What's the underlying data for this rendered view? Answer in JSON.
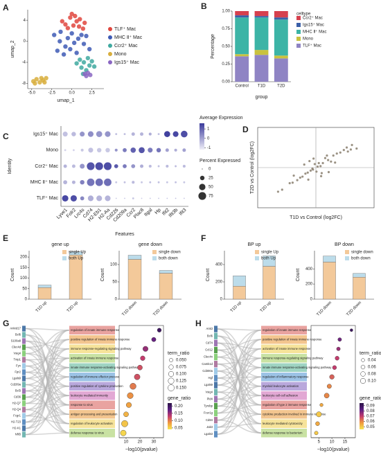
{
  "chart_data": [
    {
      "type": "scatter",
      "panel": "A",
      "xlabel": "umap_1",
      "ylabel": "umap_2",
      "xlim": [
        -5.5,
        4
      ],
      "xticks": [
        {
          "value": -5,
          "label": "-5.0"
        },
        {
          "value": -2.5,
          "label": "-2.5"
        },
        {
          "value": 0,
          "label": "0.0"
        },
        {
          "value": 2.5,
          "label": "2.5"
        }
      ],
      "ylim": [
        -9,
        6
      ],
      "yticks": [
        -8,
        -4,
        0,
        4
      ],
      "legend": "right",
      "series": [
        {
          "name": "TLF⁺ Mac",
          "color": "#e0463e",
          "x": [
            -0.8,
            -0.2,
            0.4,
            1.0,
            1.6,
            -0.5,
            0.2,
            0.9,
            1.4,
            0.0,
            -1.2,
            0.6
          ],
          "y": [
            3.2,
            4.5,
            4.8,
            4.2,
            3.5,
            2.5,
            3.0,
            2.8,
            2.4,
            5.2,
            3.8,
            3.8
          ]
        },
        {
          "name": "MHC Ⅱ⁺ Mac",
          "color": "#3e5bb5",
          "x": [
            -2.2,
            -1.5,
            -0.8,
            0.0,
            0.8,
            1.5,
            -1.8,
            -1.0,
            -0.2,
            0.6,
            1.2,
            -0.5,
            0.3,
            -1.4,
            1.8,
            2.2
          ],
          "y": [
            1.2,
            0.0,
            -1.0,
            1.5,
            0.5,
            -0.5,
            -1.8,
            -2.5,
            -1.5,
            -2.2,
            1.2,
            0.6,
            -0.3,
            1.8,
            1.0,
            -1.5
          ]
        },
        {
          "name": "Ccr2⁺ Mac",
          "color": "#3fa9a0",
          "x": [
            1.0,
            1.5,
            2.0,
            2.5,
            1.2,
            1.8,
            2.2,
            0.6,
            1.4,
            2.8
          ],
          "y": [
            -3.5,
            -4.0,
            -3.2,
            -3.8,
            -5.0,
            -5.5,
            -4.6,
            -4.2,
            -6.2,
            -4.8
          ]
        },
        {
          "name": "Mono",
          "color": "#d8ae3c",
          "x": [
            -4.8,
            -4.4,
            -4.0,
            -3.6,
            -3.2,
            -4.6,
            -3.8,
            -3.4
          ],
          "y": [
            -7.6,
            -7.2,
            -7.8,
            -7.4,
            -7.0,
            -8.0,
            -7.0,
            -7.8
          ]
        },
        {
          "name": "Igs15⁺ Mac",
          "color": "#8a66c2",
          "x": [
            1.6,
            2.0,
            1.8,
            2.3
          ],
          "y": [
            -6.2,
            -6.0,
            -6.6,
            -6.4
          ]
        }
      ]
    },
    {
      "type": "stacked_bar",
      "panel": "B",
      "xlabel": "group",
      "ylabel": "Percentage",
      "legend_title": "celltype",
      "categories": [
        "Control",
        "T1D",
        "T2D"
      ],
      "ylim": [
        0,
        1
      ],
      "yticks": [
        {
          "value": 0,
          "label": "0.00"
        },
        {
          "value": 0.25,
          "label": "0.25"
        },
        {
          "value": 0.5,
          "label": "0.50"
        },
        {
          "value": 0.75,
          "label": "0.75"
        },
        {
          "value": 1,
          "label": "1.00"
        }
      ],
      "series": [
        {
          "name": "TLF⁺ Mac",
          "color": "#8f84c4",
          "values": [
            0.36,
            0.38,
            0.33
          ]
        },
        {
          "name": "Mono",
          "color": "#c9c23e",
          "values": [
            0.03,
            0.07,
            0.04
          ]
        },
        {
          "name": "MHC Ⅱ⁺ Mac",
          "color": "#3cb4a6",
          "values": [
            0.52,
            0.46,
            0.51
          ]
        },
        {
          "name": "Igs15⁺ Mac",
          "color": "#3a5fa8",
          "values": [
            0.03,
            0.02,
            0.03
          ]
        },
        {
          "name": "Ccr2⁺ Mac",
          "color": "#d6404e",
          "values": [
            0.06,
            0.07,
            0.09
          ]
        }
      ]
    },
    {
      "type": "dot_matrix",
      "panel": "C",
      "xlabel": "Features",
      "ylabel": "Identity",
      "rows": [
        "Igs15⁺ Mac",
        "Mono",
        "Ccr2⁺ Mac",
        "MHC Ⅱ⁺ Mac",
        "TLF⁺ Mac"
      ],
      "features": [
        "Lyve1",
        "Folr2",
        "Lrc4s",
        "Cd74",
        "H2-Eb1",
        "H2-Aa",
        "Cd226",
        "Cd209a",
        "Ccr2",
        "Plac8",
        "Itgal",
        "Hp",
        "Ifit2",
        "Ifit3b",
        "Ifit3"
      ],
      "values": [
        [
          -0.5,
          -0.4,
          0.2,
          0.3,
          0.2,
          0.2,
          -0.5,
          -0.5,
          -0.3,
          -0.3,
          -0.2,
          -0.5,
          1.5,
          1.4,
          1.3
        ],
        [
          -0.8,
          -0.8,
          -0.6,
          -0.5,
          -0.6,
          -0.6,
          0.2,
          0.6,
          1.0,
          1.2,
          0.6,
          0.7,
          0.0,
          -0.2,
          0
        ],
        [
          -0.3,
          -0.4,
          0.2,
          1.2,
          1.3,
          1.3,
          1.1,
          0.6,
          0.2,
          -0.2,
          -0.4,
          -0.5,
          -0.4,
          -0.4,
          -0.4
        ],
        [
          -0.3,
          -0.3,
          0.5,
          0.7,
          0.8,
          0.8,
          -0.6,
          -0.5,
          -0.4,
          -0.6,
          -0.5,
          -0.5,
          -0.6,
          -0.5,
          -0.6
        ],
        [
          1.4,
          1.3,
          0.4,
          -0.2,
          -0.3,
          -0.3,
          -0.6,
          -0.6,
          -0.6,
          -0.7,
          -0.6,
          -0.6,
          -0.6,
          -0.5,
          -0.6
        ]
      ],
      "sizes": [
        [
          30,
          25,
          30,
          40,
          45,
          40,
          5,
          5,
          15,
          15,
          10,
          5,
          45,
          40,
          55
        ],
        [
          5,
          5,
          10,
          30,
          25,
          25,
          10,
          20,
          35,
          45,
          30,
          25,
          15,
          10,
          15
        ],
        [
          15,
          15,
          30,
          75,
          75,
          75,
          20,
          20,
          20,
          15,
          10,
          5,
          10,
          5,
          10
        ],
        [
          20,
          15,
          25,
          70,
          70,
          70,
          5,
          5,
          10,
          5,
          5,
          5,
          5,
          5,
          5
        ],
        [
          50,
          50,
          20,
          40,
          40,
          40,
          2,
          2,
          5,
          2,
          2,
          2,
          2,
          2,
          2
        ]
      ],
      "color_title": "Average Expression",
      "clim": [
        -1.2,
        1.6
      ],
      "cticks": [
        1,
        0,
        -1
      ],
      "colors": [
        "#efeef8",
        "#3b3b9c"
      ],
      "size_title": "Percent Expressed",
      "size_ticks": [
        0,
        25,
        50,
        75
      ]
    },
    {
      "type": "scatter",
      "panel": "D",
      "xlabel": "T1D vs Control (log2FC)",
      "ylabel": "T2D vs Control (log2FC)",
      "xlim": [
        -10,
        10
      ],
      "ylim": [
        -8,
        8
      ],
      "series": [
        {
          "color": "#8a7f6e",
          "x": [
            0.3,
            -0.5,
            1.2,
            -1.4,
            2.1,
            -2.3,
            0.8,
            -0.9,
            3.0,
            -3.2,
            1.6,
            -1.8,
            4.2,
            -4.5,
            0.1,
            -0.2,
            2.6,
            -2.7,
            5.3,
            -5.8,
            1.0,
            -1.1,
            3.6,
            -0.6,
            0.5,
            6.2,
            -6.5,
            2.2,
            -2.0,
            7.0,
            4.8,
            5.5,
            6.0,
            -3.8,
            1.9,
            -1.3,
            3.3,
            -4.0,
            0.9,
            -0.4
          ],
          "y": [
            0.2,
            -0.4,
            0.9,
            -1.0,
            1.5,
            -1.8,
            0.3,
            -0.6,
            2.4,
            -2.5,
            1.9,
            -1.2,
            3.0,
            -3.1,
            -0.8,
            0.7,
            1.2,
            -2.0,
            4.0,
            -4.4,
            -1.1,
            1.3,
            2.8,
            -0.2,
            0.9,
            4.5,
            -4.8,
            -0.9,
            0.6,
            3.8,
            3.5,
            3.2,
            3.6,
            -1.6,
            2.4,
            -2.4,
            1.0,
            -3.0,
            -1.7,
            1.8
          ]
        }
      ]
    },
    {
      "type": "stacked_bar",
      "panel": "E",
      "title": "gene up",
      "ylabel": "Count",
      "categories": [
        "T1D up",
        "T2D up"
      ],
      "ylim": [
        0,
        230
      ],
      "yticks": [
        0,
        50,
        100,
        150,
        200
      ],
      "series": [
        {
          "name": "single Up",
          "color": "#f3c99a",
          "values": [
            55,
            210
          ]
        },
        {
          "name": "both Up",
          "color": "#bcdcea",
          "values": [
            12,
            15
          ]
        }
      ]
    },
    {
      "type": "stacked_bar",
      "title": "gene down",
      "ylabel": "Count",
      "categories": [
        "T1D down",
        "T2D down"
      ],
      "ylim": [
        0,
        140
      ],
      "yticks": [
        0,
        50,
        100
      ],
      "series": [
        {
          "name": "single down",
          "color": "#f3c99a",
          "values": [
            115,
            75
          ]
        },
        {
          "name": "both down",
          "color": "#bcdcea",
          "values": [
            12,
            8
          ]
        }
      ]
    },
    {
      "type": "stacked_bar",
      "panel": "F",
      "title": "BP up",
      "ylabel": "Count",
      "categories": [
        "T1D up",
        "T2D up"
      ],
      "ylim": [
        0,
        560
      ],
      "yticks": [
        0,
        200,
        400
      ],
      "series": [
        {
          "name": "single Up",
          "color": "#f3c99a",
          "values": [
            150,
            380
          ]
        },
        {
          "name": "both Up",
          "color": "#bcdcea",
          "values": [
            120,
            120
          ]
        }
      ]
    },
    {
      "type": "stacked_bar",
      "title": "BP down",
      "ylabel": "Count",
      "categories": [
        "T1D down",
        "T2D down"
      ],
      "ylim": [
        0,
        640
      ],
      "yticks": [
        0,
        200,
        400
      ],
      "series": [
        {
          "name": "single down",
          "color": "#f3c99a",
          "values": [
            490,
            290
          ]
        },
        {
          "name": "both down",
          "color": "#bcdcea",
          "values": [
            80,
            50
          ]
        }
      ]
    },
    {
      "type": "enrichment",
      "panel": "G",
      "xlabel": "−log10(pvalue)",
      "xlim": [
        5,
        37
      ],
      "xticks": [
        10,
        20,
        30
      ],
      "genes": [
        "Ankrd17",
        "Bcl6",
        "S100a8",
        "Clec4d",
        "Vsig4",
        "Tnip1",
        "Fyn",
        "Fpr2",
        "Lgals9",
        "Cd209a",
        "Bcl3",
        "Cd36",
        "H2-Q7",
        "H2-Q4",
        "Fcgr1",
        "H2-T23",
        "H2-K1",
        "Nfil3"
      ],
      "terms": [
        "regulation of innate immune response",
        "positive regulation of innate immune response",
        "immune response-regulating signaling pathway",
        "activation of innate immune response",
        "innate immune response-activating signaling pathway",
        "regulation of immune effector process",
        "positive regulation of cytokine production",
        "leukocyte mediated immunity",
        "response to virus",
        "antigen processing and presentation",
        "regulation of leukocyte activation",
        "defense response to virus"
      ],
      "values": [
        34,
        30,
        24,
        22,
        20,
        18,
        15,
        13,
        12,
        10,
        9,
        8
      ],
      "term_ratio": [
        0.06,
        0.07,
        0.1,
        0.08,
        0.09,
        0.12,
        0.14,
        0.13,
        0.1,
        0.09,
        0.15,
        0.12
      ],
      "gene_ratio": [
        0.2,
        0.17,
        0.15,
        0.13,
        0.12,
        0.12,
        0.1,
        0.09,
        0.08,
        0.07,
        0.06,
        0.05
      ],
      "size_title": "term_ratio",
      "size_ticks": [
        {
          "value": 0.05,
          "label": "0.050"
        },
        {
          "value": 0.075,
          "label": "0.075"
        },
        {
          "value": 0.1,
          "label": "0.100"
        },
        {
          "value": 0.125,
          "label": "0.125"
        },
        {
          "value": 0.15,
          "label": "0.150"
        }
      ],
      "color_title": "gene_ratio",
      "clim": [
        0.04,
        0.22
      ],
      "cticks": [
        {
          "value": 0.2,
          "label": "0.20"
        },
        0.15,
        {
          "value": 0.1,
          "label": "0.10"
        },
        0.05
      ]
    },
    {
      "type": "enrichment",
      "panel": "H",
      "xlabel": "−log10(pvalue)",
      "xlim": [
        2,
        19
      ],
      "xticks": [
        5,
        10,
        15
      ],
      "genes": [
        "Ank3",
        "Bcl6",
        "Cd74",
        "Ccl12",
        "Clec4n",
        "Camk1d",
        "Cd300a",
        "Hgf",
        "Lgals9",
        "Vsig4",
        "Pld4",
        "Tyrobp",
        "Fcer1g",
        "Cd84",
        "Jak3",
        "Lgals3"
      ],
      "terms": [
        "regulation of innate immune response",
        "positive regulation of innate immune response",
        "activation of innate immune response",
        "immune response-regulating signaling pathway",
        "innate immune response-activating signaling pathway",
        "regulation of inflammatory response",
        "myeloid leukocyte activation",
        "leukocyte cell-cell adhesion",
        "regulation of type 2 immune response",
        "cytokine production involved in immune response",
        "leukocyte mediated cytotoxicity",
        "defense response to bacterium"
      ],
      "values": [
        17.5,
        13,
        12.5,
        12,
        11,
        10,
        9,
        8,
        6,
        5,
        4.5,
        4
      ],
      "term_ratio": [
        0.03,
        0.05,
        0.05,
        0.06,
        0.06,
        0.08,
        0.07,
        0.09,
        0.04,
        0.1,
        0.06,
        0.05
      ],
      "gene_ratio": [
        0.09,
        0.08,
        0.075,
        0.07,
        0.07,
        0.065,
        0.06,
        0.06,
        0.055,
        0.05,
        0.055,
        0.05
      ],
      "size_title": "term_ratio",
      "size_ticks": [
        0.04,
        0.06,
        0.08,
        {
          "value": 0.1,
          "label": "0.10"
        }
      ],
      "color_title": "gene_ratio",
      "clim": [
        0.045,
        0.095
      ],
      "cticks": [
        0.09,
        0.08,
        0.07,
        0.06,
        0.05
      ]
    }
  ]
}
